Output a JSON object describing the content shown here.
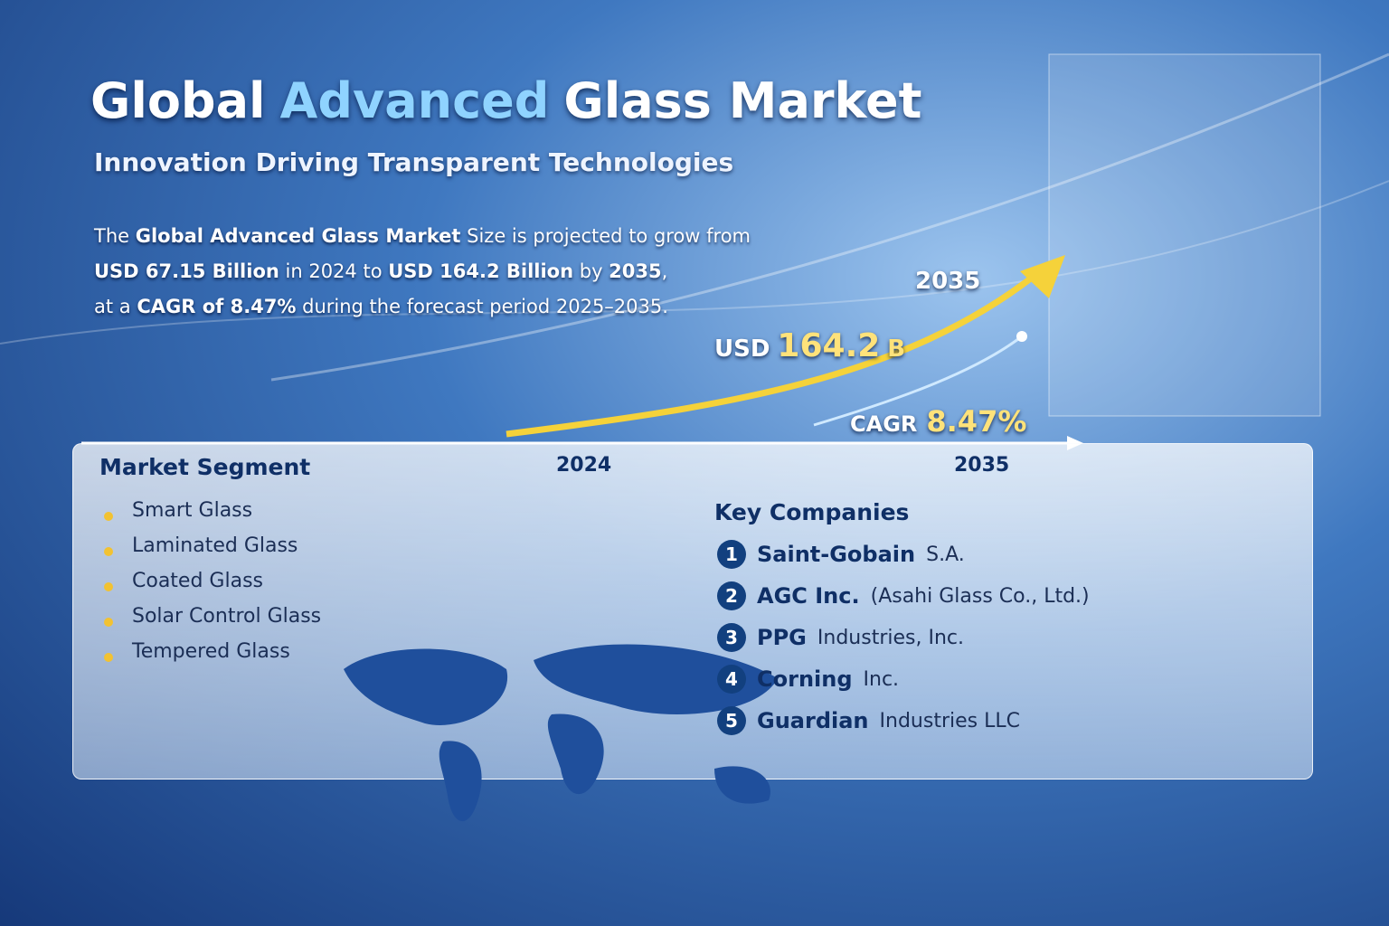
{
  "header": {
    "title": {
      "parts": [
        "Global",
        "Advanced",
        "Glass Market"
      ]
    },
    "subtitle": "Innovation Driving Transparent Technologies"
  },
  "summary": {
    "lines": [
      [
        {
          "text": "The ",
          "bold": false
        },
        {
          "text": "Global Advanced Glass Market",
          "bold": true
        },
        {
          "text": " Size is projected to grow from",
          "bold": false
        }
      ],
      [
        {
          "text": "USD 67.15 Billion",
          "bold": true
        },
        {
          "text": " in 2024 to ",
          "bold": false
        },
        {
          "text": "USD 164.2 Billion",
          "bold": true
        },
        {
          "text": " by ",
          "bold": false
        },
        {
          "text": "2035",
          "bold": true
        },
        {
          "text": ",",
          "bold": false
        }
      ],
      [
        {
          "text": "at a ",
          "bold": false
        },
        {
          "text": "CAGR of 8.47%",
          "bold": true
        },
        {
          "text": " during the forecast period 2025–2035.",
          "bold": false
        }
      ]
    ]
  },
  "growth": {
    "end_year_label": "2035",
    "value_prefix": "USD",
    "value": "164.2",
    "value_unit": "B",
    "cagr_label": "CAGR",
    "cagr": "8.47%",
    "axis_start": "2024",
    "axis_end": "2035"
  },
  "segments": {
    "title": "Market Segment",
    "items": [
      "Smart Glass",
      "Laminated Glass",
      "Coated Glass",
      "Solar Control Glass",
      "Tempered Glass"
    ]
  },
  "companies": {
    "title": "Key Companies",
    "items": [
      {
        "rank": "1",
        "name": "Saint-Gobain",
        "detail": "S.A."
      },
      {
        "rank": "2",
        "name": "AGC Inc.",
        "detail": "(Asahi Glass Co., Ltd.)"
      },
      {
        "rank": "3",
        "name": "PPG",
        "detail": "Industries, Inc."
      },
      {
        "rank": "4",
        "name": "Corning",
        "detail": "Inc."
      },
      {
        "rank": "5",
        "name": "Guardian",
        "detail": "Industries LLC"
      }
    ]
  }
}
